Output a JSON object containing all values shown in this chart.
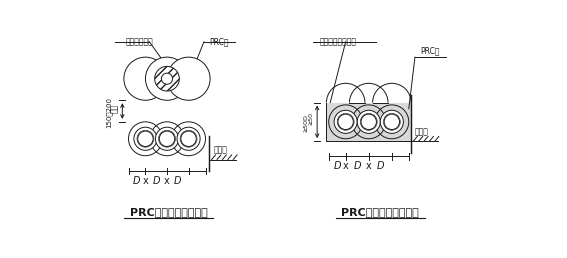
{
  "bg_color": "#ffffff",
  "line_color": "#1a1a1a",
  "title1": "PRC桩平面节点（一）",
  "title2": "PRC桩平面节点（二）",
  "label_cement1": "水泥土搅拌桩",
  "label_prc1": "PRC桩",
  "label_cement2": "三轴水泥土搅拌桩",
  "label_prc2": "PRC桩",
  "label_jikounei1": "基坑内",
  "label_jikounei2": "基坑内",
  "label_jingju": "净距",
  "label_150_200": "150～200",
  "label_50d_top": "≥50",
  "label_50d_bot": "≥50D",
  "figsize": [
    5.67,
    2.58
  ],
  "dpi": 100
}
